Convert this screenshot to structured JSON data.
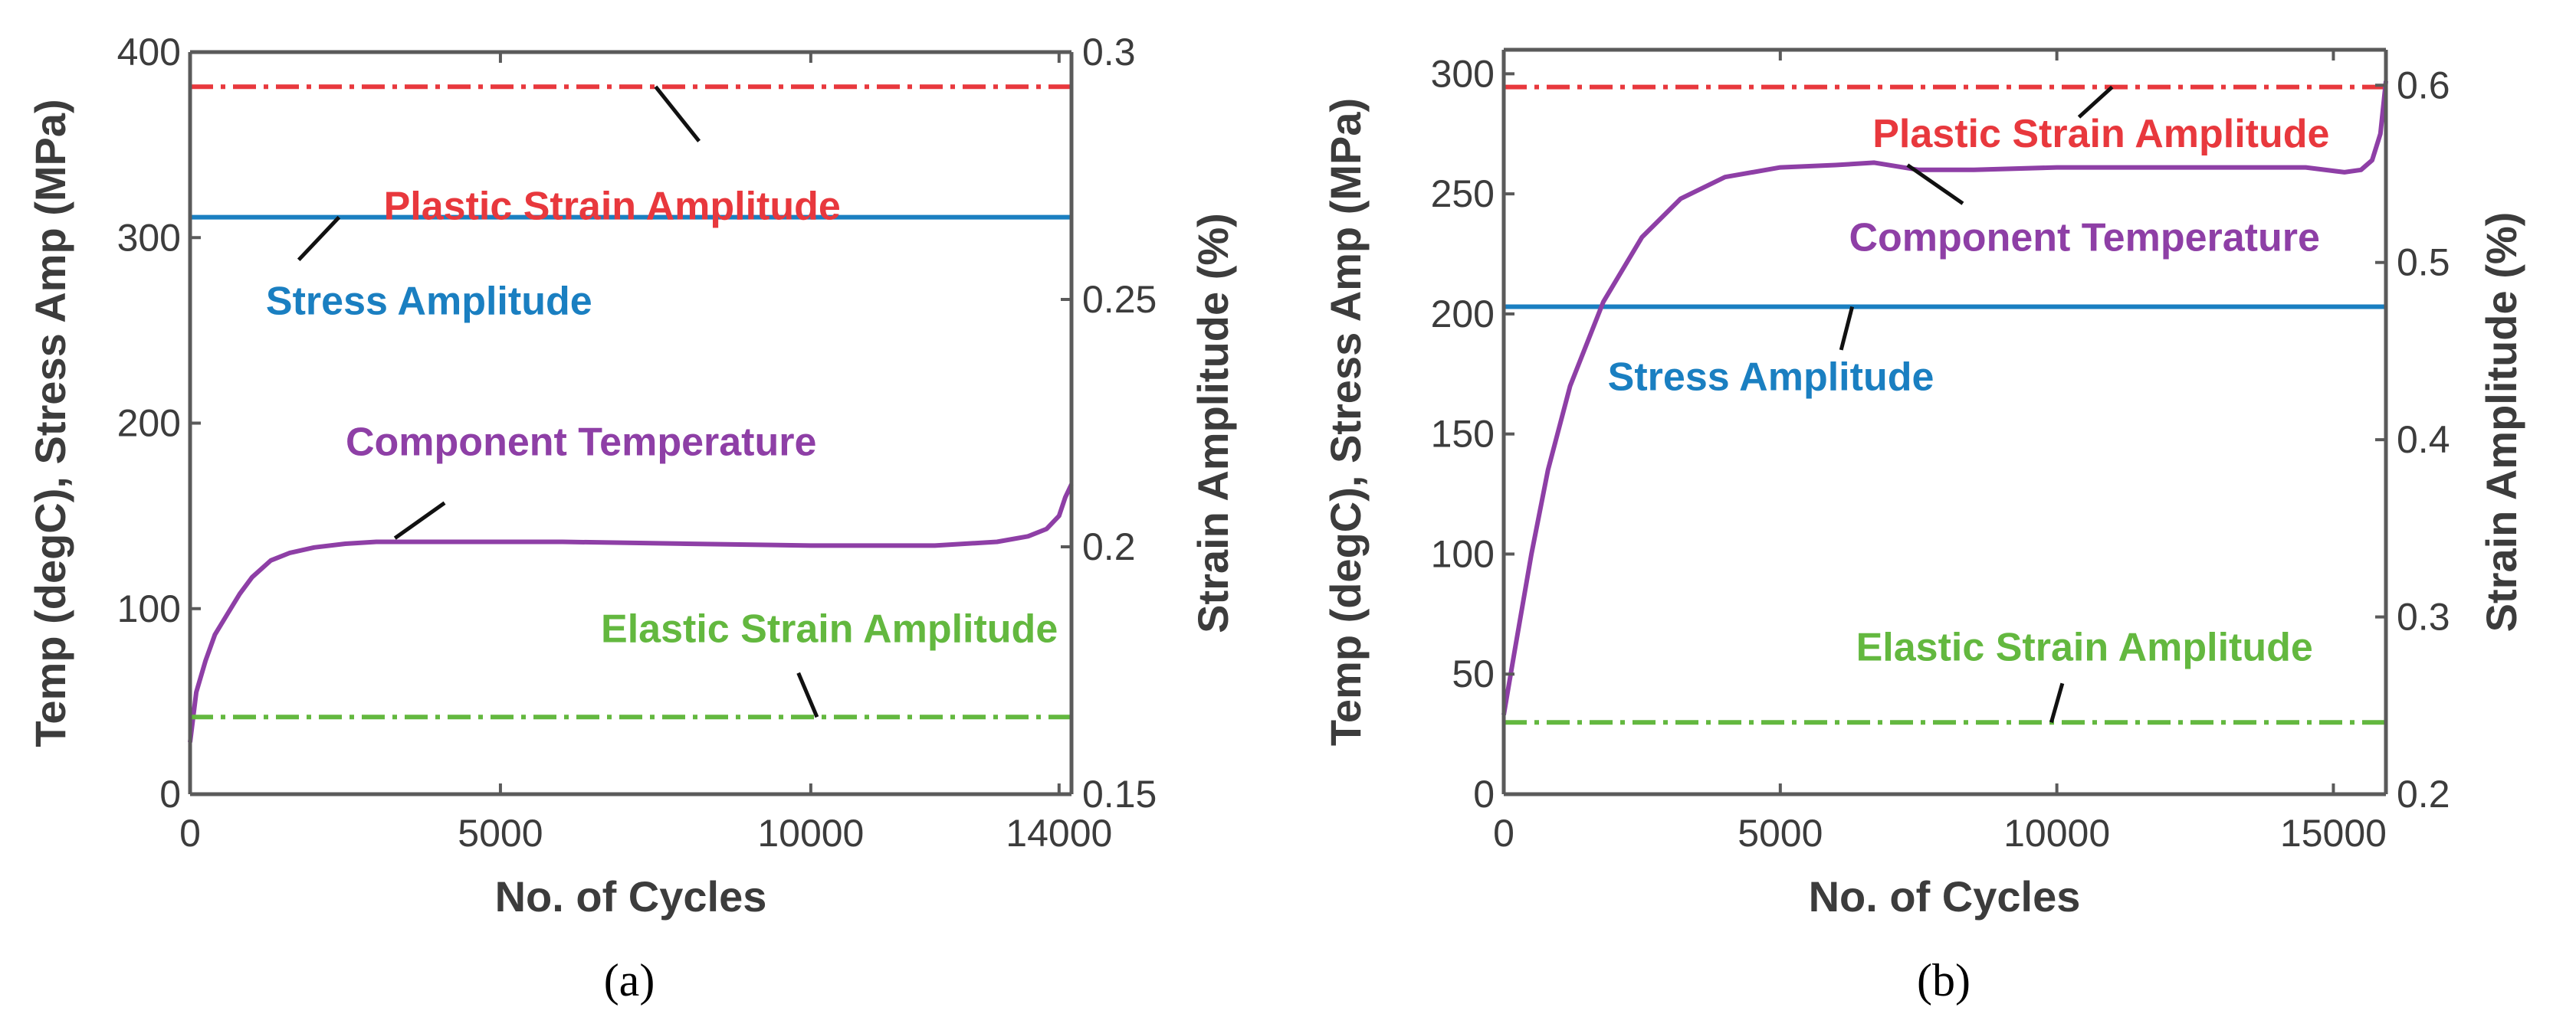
{
  "chart_data": [
    {
      "type": "line",
      "caption": "(a)",
      "xlabel": "No. of Cycles",
      "ylabel_left": "Temp (degC), Stress Amp (MPa)",
      "ylabel_right": "Strain Amplitude (%)",
      "xlim": [
        0,
        14200
      ],
      "ylim_left": [
        0,
        400
      ],
      "ylim_right": [
        0.15,
        0.3
      ],
      "x_ticks": [
        0,
        5000,
        10000,
        14000
      ],
      "x_tick_labels": [
        "0",
        "5000",
        "10000",
        "14000"
      ],
      "y_left_ticks": [
        0,
        100,
        200,
        300,
        400
      ],
      "y_left_tick_labels": [
        "0",
        "100",
        "200",
        "300",
        "400"
      ],
      "y_right_ticks": [
        0.15,
        0.2,
        0.25,
        0.3
      ],
      "y_right_tick_labels": [
        "0.15",
        "0.2",
        "0.25",
        "0.3"
      ],
      "grid": false,
      "series": [
        {
          "name": "Plastic Strain Amplitude",
          "axis": "right",
          "style": "dashdot",
          "color": "#e8383d",
          "x": [
            0,
            14200
          ],
          "y": [
            0.293,
            0.293
          ],
          "label_at": [
            6800,
            0.269
          ],
          "leader": [
            [
              7500,
              0.293
            ],
            [
              8200,
              0.282
            ]
          ]
        },
        {
          "name": "Stress Amplitude",
          "axis": "left",
          "style": "solid",
          "color": "#1a7fc1",
          "x": [
            0,
            14200
          ],
          "y": [
            311,
            311
          ],
          "label_at": [
            3850,
            266
          ],
          "leader": [
            [
              2400,
              311
            ],
            [
              1750,
              288
            ]
          ]
        },
        {
          "name": "Component Temperature",
          "axis": "left",
          "style": "solid",
          "color": "#8e3fa6",
          "x": [
            0,
            100,
            250,
            400,
            600,
            800,
            1000,
            1300,
            1600,
            2000,
            2500,
            3000,
            4000,
            6000,
            8000,
            10000,
            12000,
            13000,
            13500,
            13800,
            14000,
            14100,
            14200
          ],
          "y": [
            28,
            55,
            72,
            86,
            97,
            108,
            117,
            126,
            130,
            133,
            135,
            136,
            136,
            136,
            135,
            134,
            134,
            136,
            139,
            143,
            150,
            160,
            167
          ],
          "label_at": [
            6300,
            190
          ],
          "leader": [
            [
              3300,
              138
            ],
            [
              4100,
              157
            ]
          ]
        },
        {
          "name": "Elastic Strain Amplitude",
          "axis": "right",
          "style": "dashdot",
          "color": "#63b83f",
          "x": [
            0,
            14200
          ],
          "y": [
            0.1656,
            0.1656
          ],
          "label_at": [
            10300,
            0.1835
          ],
          "leader": [
            [
              10100,
              0.1656
            ],
            [
              9800,
              0.1745
            ]
          ]
        }
      ]
    },
    {
      "type": "line",
      "caption": "(b)",
      "xlabel": "No. of Cycles",
      "ylabel_left": "Temp (degC), Stress Amp (MPa)",
      "ylabel_right": "Strain Amplitude (%)",
      "xlim": [
        0,
        15950
      ],
      "ylim_left": [
        0,
        310
      ],
      "ylim_right": [
        0.2,
        0.62
      ],
      "x_ticks": [
        0,
        5000,
        10000,
        15000
      ],
      "x_tick_labels": [
        "0",
        "5000",
        "10000",
        "15000"
      ],
      "y_left_ticks": [
        0,
        50,
        100,
        150,
        200,
        250,
        300
      ],
      "y_left_tick_labels": [
        "0",
        "50",
        "100",
        "150",
        "200",
        "250",
        "300"
      ],
      "y_right_ticks": [
        0.2,
        0.3,
        0.4,
        0.5,
        0.6
      ],
      "y_right_tick_labels": [
        "0.2",
        "0.3",
        "0.4",
        "0.5",
        "0.6"
      ],
      "grid": false,
      "series": [
        {
          "name": "Plastic Strain Amplitude",
          "axis": "right",
          "style": "dashdot",
          "color": "#e8383d",
          "x": [
            0,
            15950
          ],
          "y": [
            0.599,
            0.599
          ],
          "label_at": [
            10800,
            0.573
          ],
          "leader": [
            [
              11000,
              0.599
            ],
            [
              10400,
              0.582
            ]
          ]
        },
        {
          "name": "Stress Amplitude",
          "axis": "left",
          "style": "solid",
          "color": "#1a7fc1",
          "x": [
            0,
            15950
          ],
          "y": [
            203,
            203
          ],
          "label_at": [
            4830,
            174
          ],
          "leader": [
            [
              6300,
              203
            ],
            [
              6100,
              185
            ]
          ]
        },
        {
          "name": "Component Temperature",
          "axis": "left",
          "style": "solid",
          "color": "#8e3fa6",
          "x": [
            0,
            200,
            500,
            800,
            1200,
            1800,
            2500,
            3200,
            4000,
            5000,
            6000,
            6700,
            7500,
            8500,
            10000,
            11500,
            13000,
            14500,
            15200,
            15500,
            15700,
            15850,
            15950
          ],
          "y": [
            33,
            60,
            100,
            135,
            170,
            205,
            232,
            248,
            257,
            261,
            262,
            263,
            260,
            260,
            261,
            261,
            261,
            261,
            259,
            260,
            264,
            275,
            297
          ],
          "label_at": [
            10500,
            232
          ],
          "leader": [
            [
              7300,
              262
            ],
            [
              8300,
              246
            ]
          ]
        },
        {
          "name": "Elastic Strain Amplitude",
          "axis": "right",
          "style": "dashdot",
          "color": "#63b83f",
          "x": [
            0,
            15950
          ],
          "y": [
            0.2405,
            0.2405
          ],
          "label_at": [
            10500,
            0.2832
          ],
          "leader": [
            [
              9900,
              0.2405
            ],
            [
              10100,
              0.2625
            ]
          ]
        }
      ]
    }
  ]
}
